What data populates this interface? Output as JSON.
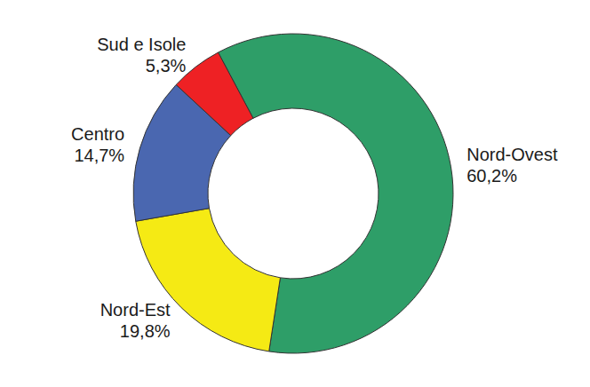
{
  "chart_data": {
    "type": "donut",
    "categories": [
      "Nord-Ovest",
      "Nord-Est",
      "Centro",
      "Sud e Isole"
    ],
    "values": [
      60.2,
      19.8,
      14.7,
      5.3
    ],
    "value_labels": [
      "60,2%",
      "19,8%",
      "14,7%",
      "5,3%"
    ],
    "colors": [
      "#2e9e68",
      "#f5ea14",
      "#4a67b0",
      "#ee2124"
    ],
    "data_labels": true
  }
}
